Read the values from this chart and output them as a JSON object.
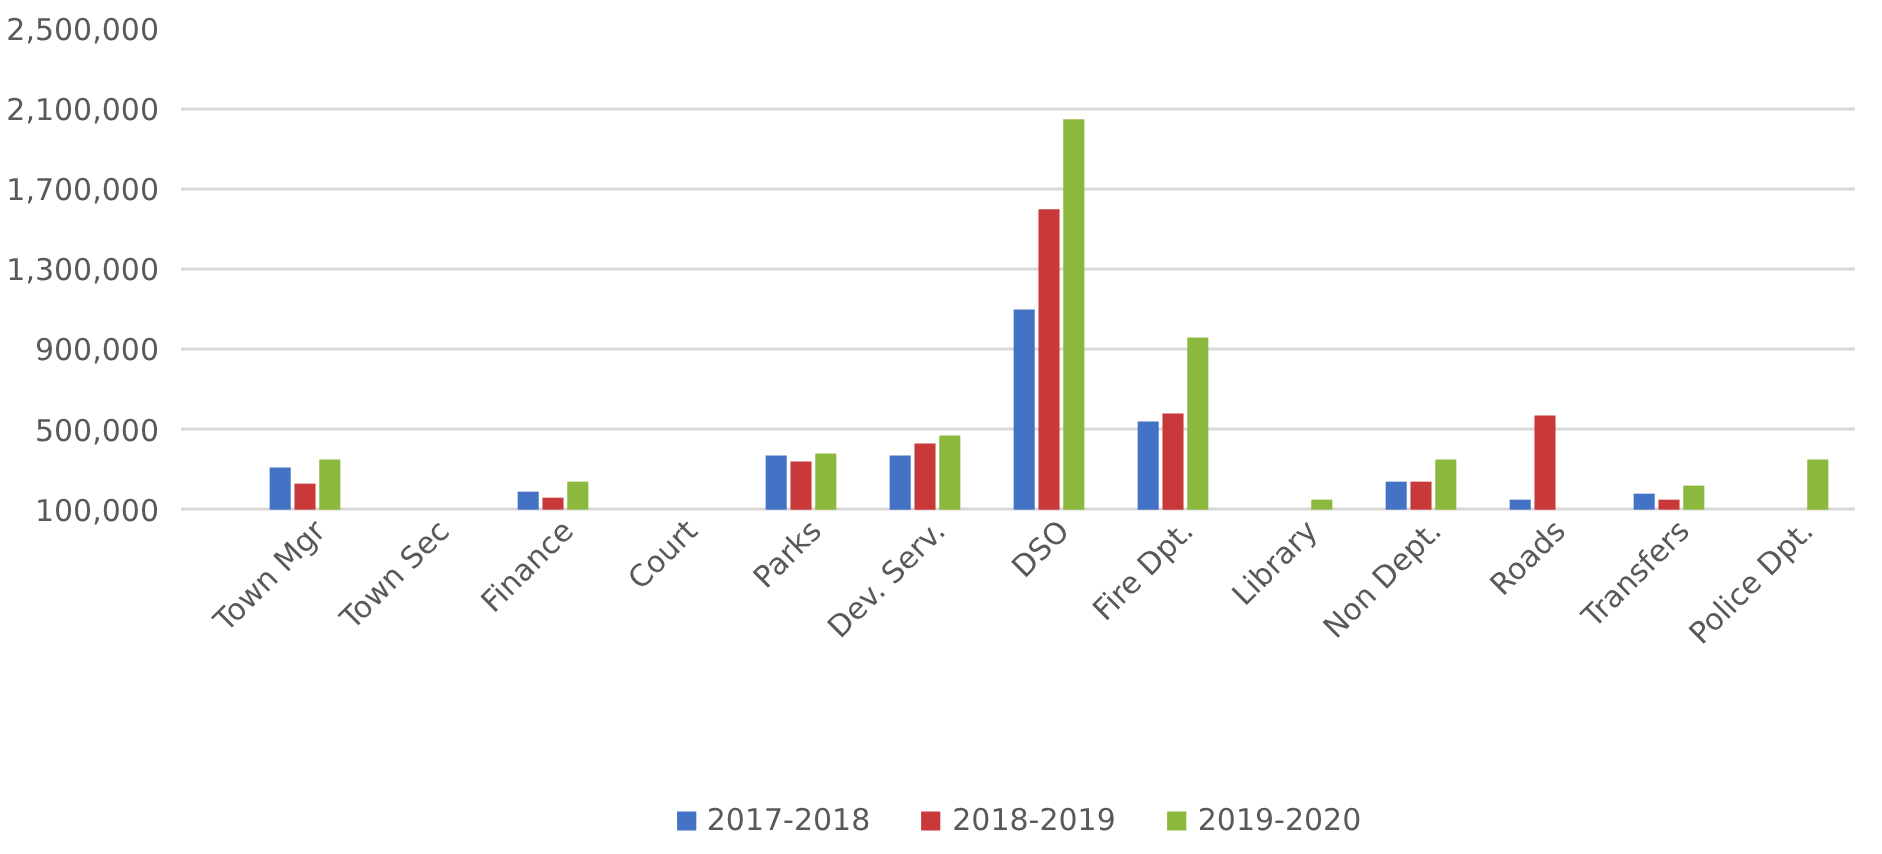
{
  "chart_data": {
    "type": "bar",
    "categories": [
      "Town Mgr",
      "Town Sec",
      "Finance",
      "Court",
      "Parks",
      "Dev. Serv.",
      "DSO",
      "Fire Dpt.",
      "Library",
      "Non Dept.",
      "Roads",
      "Transfers",
      "Police Dpt."
    ],
    "series": [
      {
        "name": "2017-2018",
        "color": "#4472c4",
        "values": [
          310000,
          null,
          190000,
          null,
          370000,
          370000,
          1100000,
          540000,
          null,
          240000,
          150000,
          180000,
          null
        ]
      },
      {
        "name": "2018-2019",
        "color": "#c9393a",
        "values": [
          230000,
          null,
          160000,
          null,
          340000,
          430000,
          1600000,
          580000,
          null,
          240000,
          570000,
          150000,
          null
        ]
      },
      {
        "name": "2019-2020",
        "color": "#8cb83e",
        "values": [
          350000,
          null,
          240000,
          null,
          380000,
          470000,
          2050000,
          960000,
          150000,
          350000,
          null,
          220000,
          350000
        ]
      }
    ],
    "ylim": [
      100000,
      2500000
    ],
    "yticks": [
      {
        "value": 100000,
        "label": "100,000"
      },
      {
        "value": 500000,
        "label": "500,000"
      },
      {
        "value": 900000,
        "label": "900,000"
      },
      {
        "value": 1300000,
        "label": "1,300,000"
      },
      {
        "value": 1700000,
        "label": "1,700,000"
      },
      {
        "value": 2100000,
        "label": "2,100,000"
      },
      {
        "value": 2500000,
        "label": "2,500,000"
      }
    ],
    "grid": "y",
    "legend": "bottom"
  }
}
